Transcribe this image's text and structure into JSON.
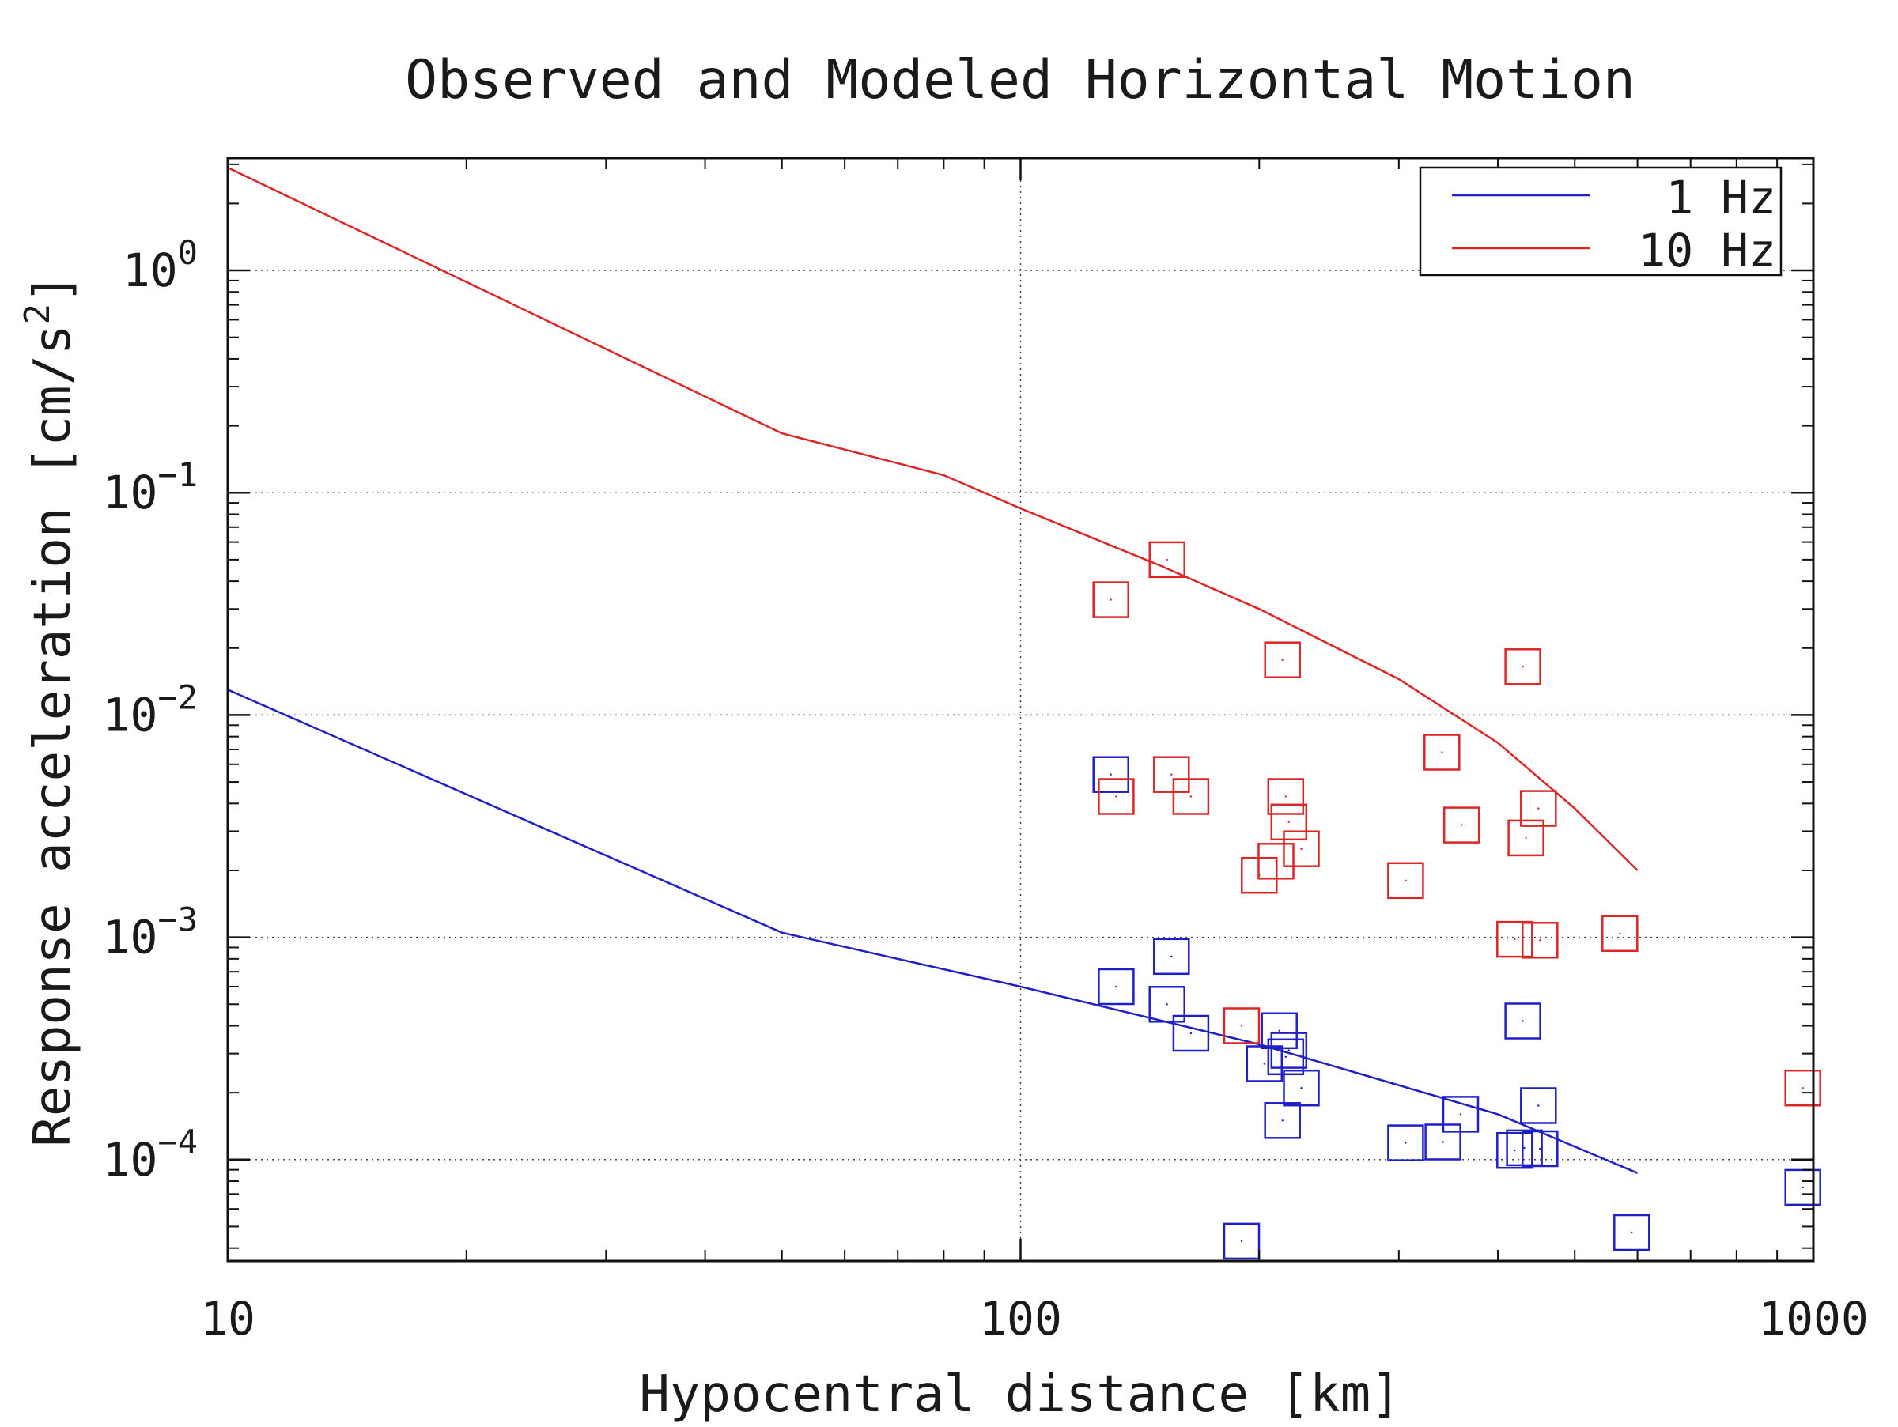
{
  "chart_data": {
    "type": "scatter",
    "title": "Observed and Modeled Horizontal Motion",
    "xlabel": "Hypocentral distance [km]",
    "ylabel": "Response acceleration [cm/s",
    "ylabel_sup": "2",
    "ylabel_end": "]",
    "x_scale": "log",
    "y_scale": "log",
    "xlim": [
      10,
      1000
    ],
    "ylim": [
      3.5e-05,
      3.2
    ],
    "grid": true,
    "x_ticks": [
      {
        "value": 10,
        "label": "10"
      },
      {
        "value": 100,
        "label": "100"
      },
      {
        "value": 1000,
        "label": "1000"
      }
    ],
    "y_ticks": [
      {
        "value": 1,
        "base": "10",
        "exp": "0"
      },
      {
        "value": 0.1,
        "base": "10",
        "exp": "−1"
      },
      {
        "value": 0.01,
        "base": "10",
        "exp": "−2"
      },
      {
        "value": 0.001,
        "base": "10",
        "exp": "−3"
      },
      {
        "value": 0.0001,
        "base": "10",
        "exp": "−4"
      }
    ],
    "legend": {
      "placement": "top-right",
      "entries": [
        {
          "label": "1 Hz",
          "color": "#1f1fc8"
        },
        {
          "label": "10 Hz",
          "color": "#dc2626"
        }
      ]
    },
    "lines": [
      {
        "name": "1 Hz",
        "color": "#1f1fc8",
        "x": [
          10,
          50,
          100,
          200,
          400,
          600
        ],
        "y": [
          0.013,
          0.00105,
          0.0006,
          0.00033,
          0.00016,
          8.7e-05
        ]
      },
      {
        "name": "10 Hz",
        "color": "#dc2626",
        "x": [
          10,
          50,
          80,
          100,
          150,
          200,
          300,
          400,
          500,
          600
        ],
        "y": [
          2.9,
          0.185,
          0.12,
          0.085,
          0.047,
          0.03,
          0.0145,
          0.0075,
          0.0038,
          0.002
        ]
      }
    ],
    "scatter": [
      {
        "name": "1 Hz observed",
        "color": "#1f1fc8",
        "marker": "square",
        "points": [
          {
            "x": 130,
            "y": 0.0054
          },
          {
            "x": 132,
            "y": 0.0006
          },
          {
            "x": 153,
            "y": 0.0005
          },
          {
            "x": 155,
            "y": 0.00082
          },
          {
            "x": 164,
            "y": 0.00037
          },
          {
            "x": 203,
            "y": 0.00027
          },
          {
            "x": 212,
            "y": 0.00038
          },
          {
            "x": 214,
            "y": 0.00015
          },
          {
            "x": 216,
            "y": 0.00029
          },
          {
            "x": 218,
            "y": 0.00031
          },
          {
            "x": 226,
            "y": 0.00021
          },
          {
            "x": 190,
            "y": 4.3e-05
          },
          {
            "x": 306,
            "y": 0.000119
          },
          {
            "x": 341,
            "y": 0.00012
          },
          {
            "x": 359,
            "y": 0.00016
          },
          {
            "x": 420,
            "y": 0.00011
          },
          {
            "x": 432,
            "y": 0.000113
          },
          {
            "x": 430,
            "y": 0.00042
          },
          {
            "x": 452,
            "y": 0.000112
          },
          {
            "x": 450,
            "y": 0.000175
          },
          {
            "x": 590,
            "y": 4.7e-05
          },
          {
            "x": 970,
            "y": 7.5e-05
          }
        ]
      },
      {
        "name": "10 Hz observed",
        "color": "#dc2626",
        "marker": "square",
        "points": [
          {
            "x": 130,
            "y": 0.033
          },
          {
            "x": 153,
            "y": 0.05
          },
          {
            "x": 214,
            "y": 0.0177
          },
          {
            "x": 430,
            "y": 0.0165
          },
          {
            "x": 132,
            "y": 0.0043
          },
          {
            "x": 155,
            "y": 0.0054
          },
          {
            "x": 164,
            "y": 0.0043
          },
          {
            "x": 216,
            "y": 0.0043
          },
          {
            "x": 218,
            "y": 0.0033
          },
          {
            "x": 226,
            "y": 0.0025
          },
          {
            "x": 210,
            "y": 0.0022
          },
          {
            "x": 200,
            "y": 0.0019
          },
          {
            "x": 340,
            "y": 0.0068
          },
          {
            "x": 360,
            "y": 0.0032
          },
          {
            "x": 306,
            "y": 0.0018
          },
          {
            "x": 450,
            "y": 0.0038
          },
          {
            "x": 434,
            "y": 0.0028
          },
          {
            "x": 420,
            "y": 0.00098
          },
          {
            "x": 452,
            "y": 0.00097
          },
          {
            "x": 570,
            "y": 0.00104
          },
          {
            "x": 190,
            "y": 0.0004
          },
          {
            "x": 970,
            "y": 0.00021
          }
        ]
      }
    ]
  }
}
